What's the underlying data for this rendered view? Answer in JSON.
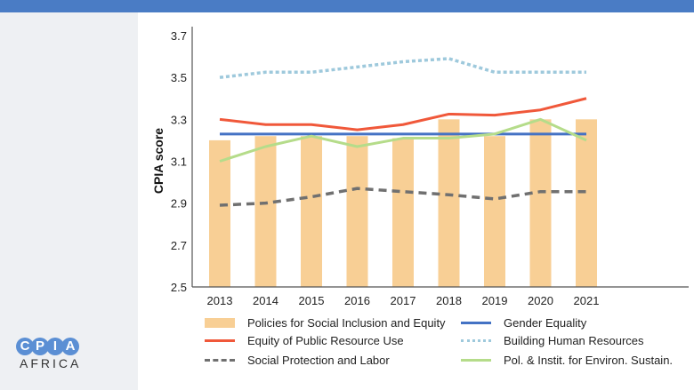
{
  "chart_data": {
    "type": "bar+line",
    "ylabel": "CPIA score",
    "ylim": [
      2.5,
      3.7
    ],
    "yticks": [
      "2.5",
      "2.7",
      "2.9",
      "3.1",
      "3.3",
      "3.5",
      "3.7"
    ],
    "categories": [
      "2013",
      "2014",
      "2015",
      "2016",
      "2017",
      "2018",
      "2019",
      "2020",
      "2021"
    ],
    "series": [
      {
        "name": "Policies for Social Inclusion and Equity",
        "kind": "bar",
        "color": "#f8cf95",
        "values": [
          3.2,
          3.22,
          3.22,
          3.22,
          3.21,
          3.3,
          3.22,
          3.3,
          3.3
        ]
      },
      {
        "name": "Gender Equality",
        "kind": "line",
        "style": "solid",
        "color": "#4472c4",
        "values": [
          3.23,
          3.23,
          3.23,
          3.23,
          3.23,
          3.23,
          3.23,
          3.23,
          3.23
        ]
      },
      {
        "name": "Equity of Public Resource Use",
        "kind": "line",
        "style": "solid",
        "color": "#f0583a",
        "values": [
          3.3,
          3.275,
          3.275,
          3.25,
          3.275,
          3.325,
          3.32,
          3.345,
          3.4
        ]
      },
      {
        "name": "Building Human Resources",
        "kind": "line",
        "style": "dotted",
        "color": "#9ec9dc",
        "values": [
          3.5,
          3.525,
          3.525,
          3.55,
          3.575,
          3.59,
          3.525,
          3.525,
          3.525
        ]
      },
      {
        "name": "Social Protection and Labor",
        "kind": "line",
        "style": "dashed",
        "color": "#707070",
        "values": [
          2.89,
          2.9,
          2.93,
          2.97,
          2.955,
          2.94,
          2.92,
          2.955,
          2.955
        ]
      },
      {
        "name": "Pol. & Instit. for Environ. Sustain.",
        "kind": "line",
        "style": "solid",
        "color": "#b5dc8a",
        "values": [
          3.1,
          3.17,
          3.22,
          3.17,
          3.21,
          3.21,
          3.23,
          3.3,
          3.2
        ]
      }
    ],
    "legend": "bottom",
    "grid": false
  },
  "logo": {
    "letters": [
      "C",
      "P",
      "I",
      "A"
    ],
    "sub": "AFRICA"
  },
  "colors": {
    "topbar": "#4a7cc5",
    "panel": "#eef0f3"
  }
}
